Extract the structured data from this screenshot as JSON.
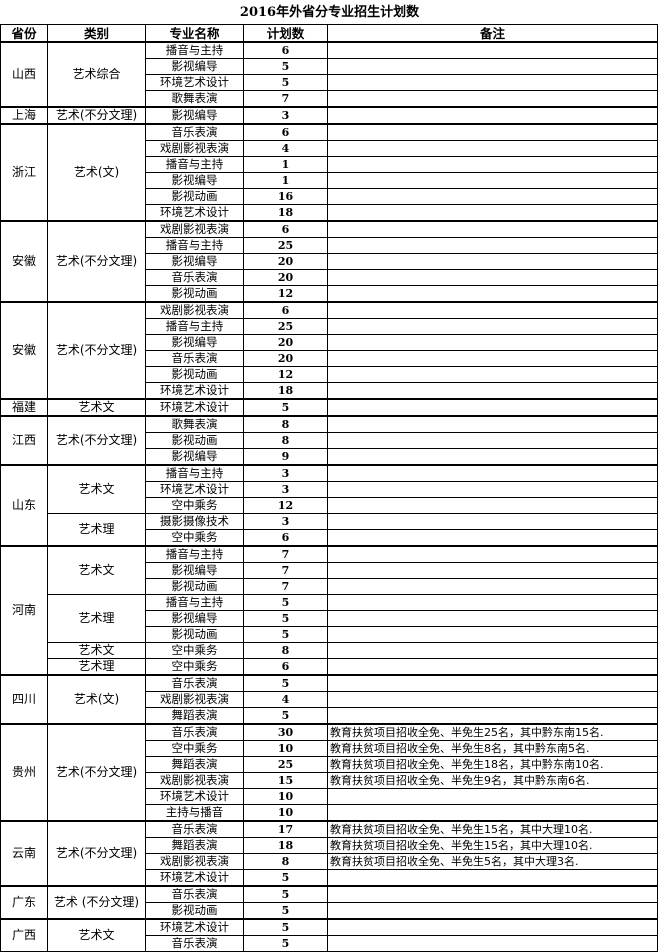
{
  "title": "2016年外省分专业招生计划数",
  "headers": [
    "省份",
    "类别",
    "专业名称",
    "计划数",
    "备注"
  ],
  "groups": [
    {
      "province": "山西",
      "categories": [
        {
          "name": "艺术综合",
          "rows": [
            [
              "播音与主持",
              "6",
              ""
            ],
            [
              "影视编导",
              "5",
              ""
            ],
            [
              "环境艺术设计",
              "5",
              ""
            ],
            [
              "歌舞表演",
              "7",
              ""
            ]
          ]
        }
      ]
    },
    {
      "province": "上海",
      "categories": [
        {
          "name": "艺术(不分文理)",
          "rows": [
            [
              "影视编导",
              "3",
              ""
            ]
          ]
        }
      ]
    },
    {
      "province": "浙江",
      "categories": [
        {
          "name": "艺术(文)",
          "rows": [
            [
              "音乐表演",
              "6",
              ""
            ],
            [
              "戏剧影视表演",
              "4",
              ""
            ],
            [
              "播音与主持",
              "1",
              ""
            ],
            [
              "影视编导",
              "1",
              ""
            ],
            [
              "影视动画",
              "16",
              ""
            ],
            [
              "环境艺术设计",
              "18",
              ""
            ]
          ]
        }
      ]
    },
    {
      "province": "安徽",
      "categories": [
        {
          "name": "艺术(不分文理)",
          "rows": [
            [
              "戏剧影视表演",
              "6",
              ""
            ],
            [
              "播音与主持",
              "25",
              ""
            ],
            [
              "影视编导",
              "20",
              ""
            ],
            [
              "音乐表演",
              "20",
              ""
            ],
            [
              "影视动画",
              "12",
              ""
            ]
          ]
        }
      ]
    },
    {
      "province": "安徽",
      "categories": [
        {
          "name": "艺术(不分文理)",
          "rows": [
            [
              "戏剧影视表演",
              "6",
              ""
            ],
            [
              "播音与主持",
              "25",
              ""
            ],
            [
              "影视编导",
              "20",
              ""
            ],
            [
              "音乐表演",
              "20",
              ""
            ],
            [
              "影视动画",
              "12",
              ""
            ],
            [
              "环境艺术设计",
              "18",
              ""
            ]
          ]
        }
      ]
    },
    {
      "province": "福建",
      "categories": [
        {
          "name": "艺术文",
          "rows": [
            [
              "环境艺术设计",
              "5",
              ""
            ]
          ]
        }
      ]
    },
    {
      "province": "江西",
      "categories": [
        {
          "name": "艺术(不分文理)",
          "rows": [
            [
              "歌舞表演",
              "8",
              ""
            ],
            [
              "影视动画",
              "8",
              ""
            ],
            [
              "影视编导",
              "9",
              ""
            ]
          ]
        }
      ]
    },
    {
      "province": "山东",
      "categories": [
        {
          "name": "艺术文",
          "rows": [
            [
              "播音与主持",
              "3",
              ""
            ],
            [
              "环境艺术设计",
              "3",
              ""
            ],
            [
              "空中乘务",
              "12",
              ""
            ]
          ]
        },
        {
          "name": "艺术理",
          "rows": [
            [
              "摄影摄像技术",
              "3",
              ""
            ],
            [
              "空中乘务",
              "6",
              ""
            ]
          ]
        }
      ]
    },
    {
      "province": "河南",
      "categories": [
        {
          "name": "艺术文",
          "rows": [
            [
              "播音与主持",
              "7",
              ""
            ],
            [
              "影视编导",
              "7",
              ""
            ],
            [
              "影视动画",
              "7",
              ""
            ]
          ]
        },
        {
          "name": "艺术理",
          "rows": [
            [
              "播音与主持",
              "5",
              ""
            ],
            [
              "影视编导",
              "5",
              ""
            ],
            [
              "影视动画",
              "5",
              ""
            ]
          ]
        },
        {
          "name": "艺术文",
          "rows": [
            [
              "空中乘务",
              "8",
              ""
            ]
          ]
        },
        {
          "name": "艺术理",
          "rows": [
            [
              "空中乘务",
              "6",
              ""
            ]
          ]
        }
      ]
    },
    {
      "province": "四川",
      "categories": [
        {
          "name": "艺术(文)",
          "rows": [
            [
              "音乐表演",
              "5",
              ""
            ],
            [
              "戏剧影视表演",
              "4",
              ""
            ],
            [
              "舞蹈表演",
              "5",
              ""
            ]
          ]
        }
      ]
    },
    {
      "province": "贵州",
      "categories": [
        {
          "name": "艺术(不分文理)",
          "rows": [
            [
              "音乐表演",
              "30",
              "教育扶贫项目招收全免、半免生25名，其中黔东南15名."
            ],
            [
              "空中乘务",
              "10",
              "教育扶贫项目招收全免、半免生8名，其中黔东南5名."
            ],
            [
              "舞蹈表演",
              "25",
              "教育扶贫项目招收全免、半免生18名，其中黔东南10名."
            ],
            [
              "戏剧影视表演",
              "15",
              "教育扶贫项目招收全免、半免生9名，其中黔东南6名."
            ],
            [
              "环境艺术设计",
              "10",
              ""
            ],
            [
              "主持与播音",
              "10",
              ""
            ]
          ]
        }
      ]
    },
    {
      "province": "云南",
      "categories": [
        {
          "name": "艺术(不分文理)",
          "rows": [
            [
              "音乐表演",
              "17",
              "教育扶贫项目招收全免、半免生15名，其中大理10名."
            ],
            [
              "舞蹈表演",
              "18",
              "教育扶贫项目招收全免、半免生15名，其中大理10名."
            ],
            [
              "戏剧影视表演",
              "8",
              "教育扶贫项目招收全免、半免生5名，其中大理3名."
            ],
            [
              "环境艺术设计",
              "5",
              ""
            ]
          ]
        }
      ]
    },
    {
      "province": "广东",
      "categories": [
        {
          "name": "艺术 (不分文理)",
          "rows": [
            [
              "音乐表演",
              "5",
              ""
            ],
            [
              "影视动画",
              "5",
              ""
            ]
          ]
        }
      ]
    },
    {
      "province": "广西",
      "categories": [
        {
          "name": "艺术文",
          "rows": [
            [
              "环境艺术设计",
              "5",
              ""
            ],
            [
              "音乐表演",
              "5",
              ""
            ]
          ]
        }
      ]
    }
  ]
}
